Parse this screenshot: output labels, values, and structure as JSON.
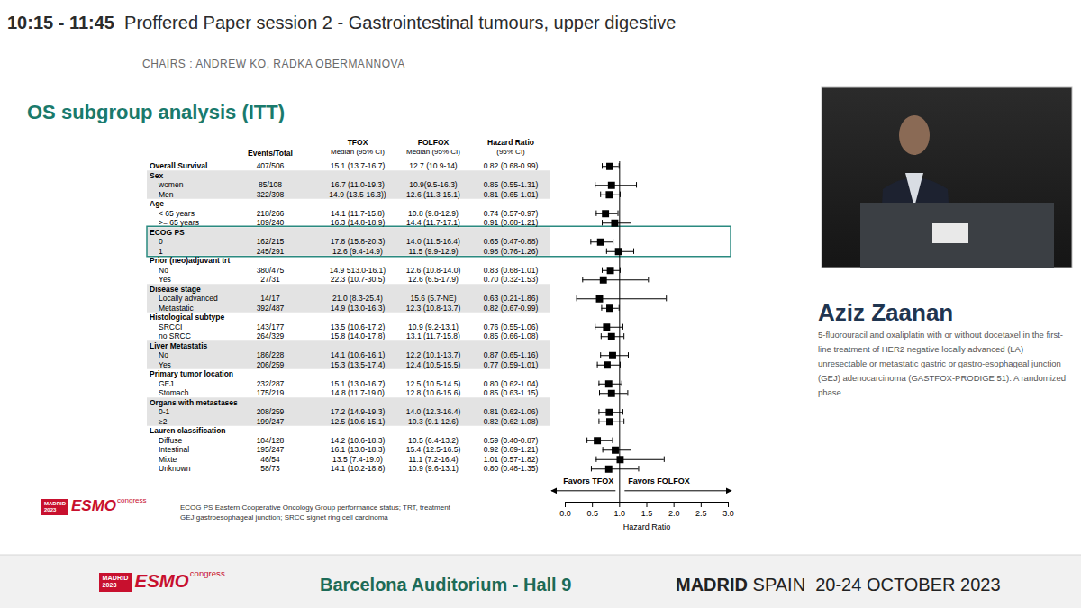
{
  "header": {
    "time": "10:15 - 11:45",
    "session": "Proffered Paper session 2 - Gastrointestinal tumours, upper digestive",
    "chairs": "CHAIRS : ANDREW KO, RADKA OBERMANNOVA"
  },
  "slide": {
    "title": "OS subgroup analysis (ITT)",
    "footnotes": [
      "ECOG PS Eastern Cooperative Oncology Group performance status; TRT, treatment",
      "GEJ gastroesophageal junction; SRCC signet ring cell carcinoma"
    ],
    "logo": {
      "city": "MADRID",
      "year": "2023",
      "brand": "ESMO",
      "word": "congress"
    }
  },
  "chart_data": {
    "type": "forest",
    "xlabel": "Hazard Ratio",
    "xlim": [
      0,
      3
    ],
    "xticks": [
      {
        "value": 0,
        "label": "0.0"
      },
      {
        "value": 0.5,
        "label": "0.5"
      },
      {
        "value": 1,
        "label": "1.0"
      },
      {
        "value": 1.5,
        "label": "1.5"
      },
      {
        "value": 2,
        "label": "2.0"
      },
      {
        "value": 2.5,
        "label": "2.5"
      },
      {
        "value": 3,
        "label": "3.0"
      }
    ],
    "reference": 1,
    "marker": "square",
    "color": "#000000",
    "favors": [
      "Favors TFOX",
      "Favors FOLFOX"
    ],
    "columns": {
      "events": "Events/Total",
      "tfox": [
        "TFOX",
        "Median (95% CI)"
      ],
      "folfox": [
        "FOLFOX",
        "Median (95% CI)"
      ],
      "hr": [
        "Hazard Ratio",
        "(95% CI)"
      ]
    },
    "rows": [
      {
        "label": "Overall Survival",
        "events": "407/506",
        "tfox": "15.1 (13.7-16.7)",
        "folfox": "12.7 (10.9-14)",
        "hr_text": "0.82 (0.68-0.99)",
        "hr": 0.82,
        "lo": 0.68,
        "hi": 0.99
      },
      {
        "label": "Sex"
      },
      {
        "label": "women",
        "events": "85/108",
        "tfox": "16.7 (11.0-19.3)",
        "folfox": "10.9(9.5-16.3)",
        "hr_text": "0.85 (0.55-1.31)",
        "hr": 0.85,
        "lo": 0.55,
        "hi": 1.31
      },
      {
        "label": "Men",
        "events": "322/398",
        "tfox": "14.9 (13.5-16.3))",
        "folfox": "12.6 (11.3-15.1)",
        "hr_text": "0.81 (0.65-1.01)",
        "hr": 0.81,
        "lo": 0.65,
        "hi": 1.01
      },
      {
        "label": "Age"
      },
      {
        "label": "< 65 years",
        "events": "218/266",
        "tfox": "14.1 (11.7-15.8)",
        "folfox": "10.8 (9.8-12.9)",
        "hr_text": "0.74 (0.57-0.97)",
        "hr": 0.74,
        "lo": 0.57,
        "hi": 0.97
      },
      {
        "label": ">= 65 years",
        "events": "189/240",
        "tfox": "16.3 (14.8-18.9)",
        "folfox": "14.4 (11.7-17.1)",
        "hr_text": "0.91 (0.68-1.21)",
        "hr": 0.91,
        "lo": 0.68,
        "hi": 1.21
      },
      {
        "label": "ECOG PS"
      },
      {
        "label": "0",
        "events": "162/215",
        "tfox": "17.8 (15.8-20.3)",
        "folfox": "14.0 (11.5-16.4)",
        "hr_text": "0.65 (0.47-0.88)",
        "hr": 0.65,
        "lo": 0.47,
        "hi": 0.88
      },
      {
        "label": "1",
        "events": "245/291",
        "tfox": "12.6 (9.4-14.9)",
        "folfox": "11.5 (9.9-12.9)",
        "hr_text": "0.98 (0.76-1.26)",
        "hr": 0.98,
        "lo": 0.76,
        "hi": 1.26
      },
      {
        "label": "Prior (neo)adjuvant trt"
      },
      {
        "label": "No",
        "events": "380/475",
        "tfox": "14.9 513.0-16.1)",
        "folfox": "12.6 (10.8-14.0)",
        "hr_text": "0.83 (0.68-1.01)",
        "hr": 0.83,
        "lo": 0.68,
        "hi": 1.01
      },
      {
        "label": "Yes",
        "events": "27/31",
        "tfox": "22.3 (10.7-30.5)",
        "folfox": "12.6 (6.5-17.9)",
        "hr_text": "0.70 (0.32-1.53)",
        "hr": 0.7,
        "lo": 0.32,
        "hi": 1.53
      },
      {
        "label": "Disease stage"
      },
      {
        "label": "Locally advanced",
        "events": "14/17",
        "tfox": "21.0 (8.3-25.4)",
        "folfox": "15.6 (5.7-NE)",
        "hr_text": "0.63 (0.21-1.86)",
        "hr": 0.63,
        "lo": 0.21,
        "hi": 1.86
      },
      {
        "label": "Metastatic",
        "events": "392/487",
        "tfox": "14.9 (13.0-16.3)",
        "folfox": "12.3 (10.8-13.7)",
        "hr_text": "0.82 (0.67-0.99)",
        "hr": 0.82,
        "lo": 0.67,
        "hi": 0.99
      },
      {
        "label": "Histological subtype"
      },
      {
        "label": "SRCCI",
        "events": "143/177",
        "tfox": "13.5 (10.6-17.2)",
        "folfox": "10.9 (9.2-13.1)",
        "hr_text": "0.76 (0.55-1.06)",
        "hr": 0.76,
        "lo": 0.55,
        "hi": 1.06
      },
      {
        "label": "no SRCC",
        "events": "264/329",
        "tfox": "15.8 (14.0-17.8)",
        "folfox": "13.1 (11.7-15.8)",
        "hr_text": "0.85 (0.66-1.08)",
        "hr": 0.85,
        "lo": 0.66,
        "hi": 1.08
      },
      {
        "label": "Liver Metastatis"
      },
      {
        "label": "No",
        "events": "186/228",
        "tfox": "14.1 (10.6-16.1)",
        "folfox": "12.2 (10.1-13.7)",
        "hr_text": "0.87 (0.65-1.16)",
        "hr": 0.87,
        "lo": 0.65,
        "hi": 1.16
      },
      {
        "label": "Yes",
        "events": "206/259",
        "tfox": "15.3 (13.5-17.4)",
        "folfox": "12.4 (10.5-15.5)",
        "hr_text": "0.77 (0.59-1.01)",
        "hr": 0.77,
        "lo": 0.59,
        "hi": 1.01
      },
      {
        "label": "Primary tumor location"
      },
      {
        "label": "GEJ",
        "events": "232/287",
        "tfox": "15.1 (13.0-16.7)",
        "folfox": "12.5 (10.5-14.5)",
        "hr_text": "0.80 (0.62-1.04)",
        "hr": 0.8,
        "lo": 0.62,
        "hi": 1.04
      },
      {
        "label": "Stomach",
        "events": "175/219",
        "tfox": "14.8 (11.7-19.0)",
        "folfox": "12.8 (10.6-15.6)",
        "hr_text": "0.85 (0.63-1.15)",
        "hr": 0.85,
        "lo": 0.63,
        "hi": 1.15
      },
      {
        "label": "Organs with metastases"
      },
      {
        "label": "0-1",
        "events": "208/259",
        "tfox": "17.2 (14.9-19.3)",
        "folfox": "14.0 (12.3-16.4)",
        "hr_text": "0.81 (0.62-1.06)",
        "hr": 0.81,
        "lo": 0.62,
        "hi": 1.06
      },
      {
        "label": "≥2",
        "events": "199/247",
        "tfox": "12.5 (10.6-15.1)",
        "folfox": "10.3 (9.1-12.6)",
        "hr_text": "0.82 (0.62-1.08)",
        "hr": 0.82,
        "lo": 0.62,
        "hi": 1.08
      },
      {
        "label": "Lauren classification"
      },
      {
        "label": "Diffuse",
        "events": "104/128",
        "tfox": "14.2 (10.6-18.3)",
        "folfox": "10.5 (6.4-13.2)",
        "hr_text": "0.59 (0.40-0.87)",
        "hr": 0.59,
        "lo": 0.4,
        "hi": 0.87
      },
      {
        "label": "Intestinal",
        "events": "195/247",
        "tfox": "16.1 (13.0-18.3)",
        "folfox": "15.4 (12.5-16.5)",
        "hr_text": "0.92 (0.69-1.21)",
        "hr": 0.92,
        "lo": 0.69,
        "hi": 1.21
      },
      {
        "label": "Mixte",
        "events": "46/54",
        "tfox": "13.5 (7.4-19.0)",
        "folfox": "11.1 (7.2-16.4)",
        "hr_text": "1.01 (0.57-1.82)",
        "hr": 1.01,
        "lo": 0.57,
        "hi": 1.82
      },
      {
        "label": "Unknown",
        "events": "58/73",
        "tfox": "14.1 (10.2-18.8)",
        "folfox": "10.9 (9.6-13.1)",
        "hr_text": "0.80 (0.48-1.35)",
        "hr": 0.8,
        "lo": 0.48,
        "hi": 1.35
      }
    ]
  },
  "speaker": {
    "name": "Aziz Zaanan",
    "abstract": "5-fluorouracil and oxaliplatin with or without docetaxel in the first-line treatment of HER2 negative locally advanced (LA) unresectable or metastatic gastric or gastro-esophageal junction (GEJ) adenocarcinoma (GASTFOX-PRODIGE 51): A randomized phase..."
  },
  "footer": {
    "logo": {
      "city": "MADRID",
      "year": "2023",
      "brand": "ESMO",
      "word": "congress"
    },
    "venue": "Barcelona Auditorium - Hall 9",
    "city": "MADRID",
    "country": "SPAIN",
    "dates": "20-24 OCTOBER 2023"
  }
}
